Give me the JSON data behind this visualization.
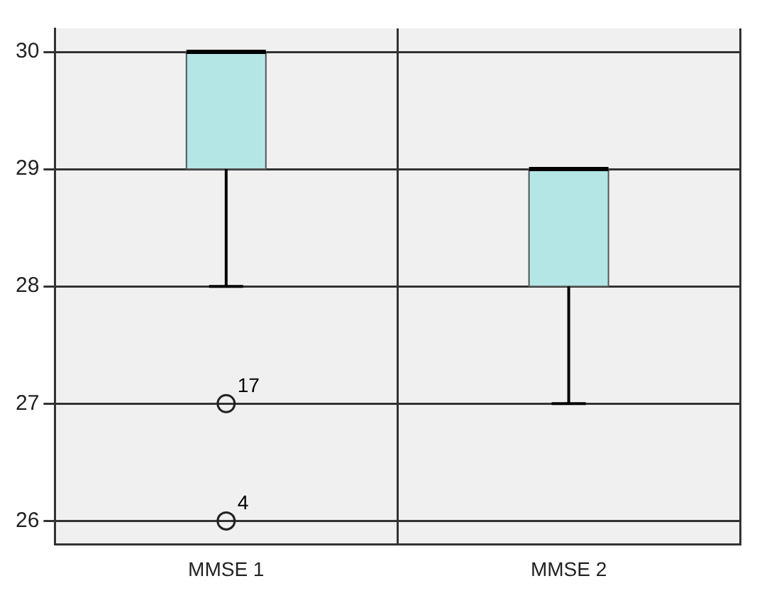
{
  "chart_data": {
    "type": "box",
    "categories": [
      "MMSE 1",
      "MMSE 2"
    ],
    "color": "#b4e6e6",
    "boxes": [
      {
        "low": 28,
        "q1": 29,
        "median": 30,
        "q3": 30,
        "high": 30,
        "outliers": [
          27,
          26
        ]
      },
      {
        "low": 27,
        "q1": 28,
        "median": 29,
        "q3": 29,
        "high": 29
      }
    ],
    "annotations": [
      "17",
      "4"
    ],
    "ylim": [
      25.8,
      30.2
    ],
    "yticks": [
      26,
      27,
      28,
      29,
      30
    ],
    "grid": true,
    "legend": false
  }
}
